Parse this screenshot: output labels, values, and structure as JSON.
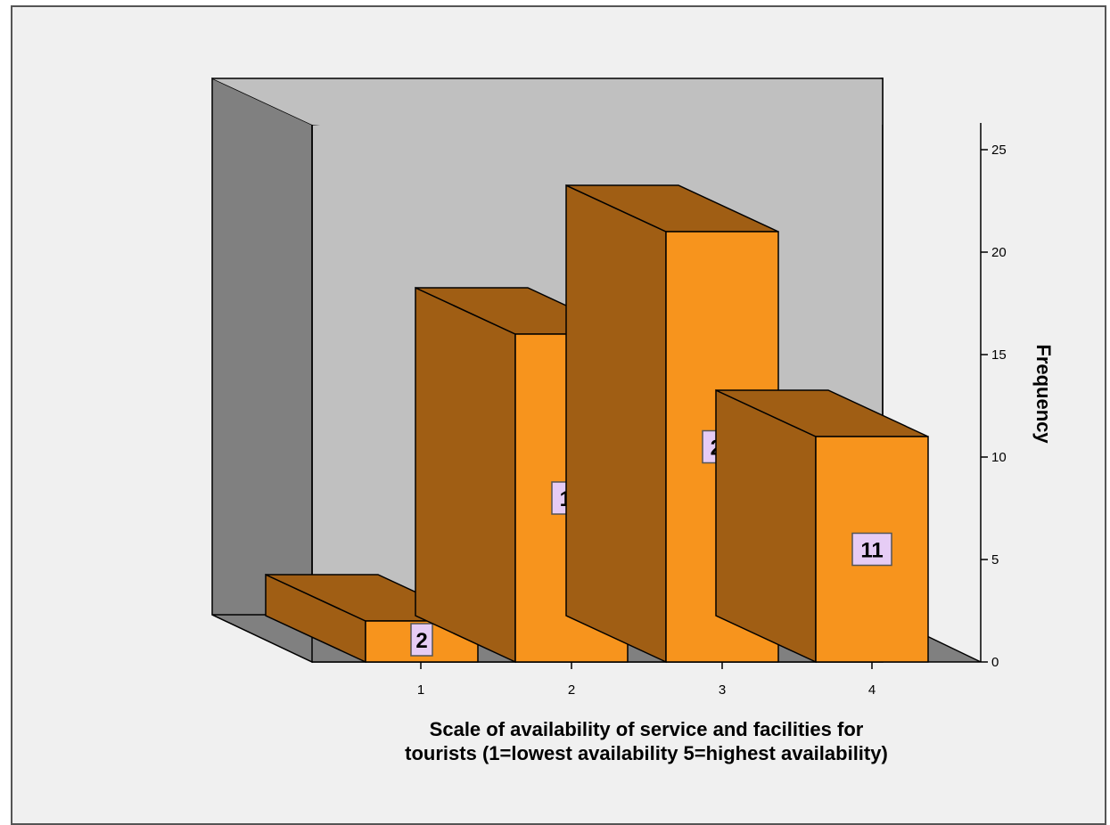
{
  "chart_data": {
    "type": "bar",
    "three_d": true,
    "categories": [
      "1",
      "2",
      "3",
      "4"
    ],
    "values": [
      2,
      16,
      21,
      11
    ],
    "data_labels": [
      "2",
      "16",
      "21",
      "11"
    ],
    "xlabel_lines": [
      "Scale of availability of service and facilities for",
      "tourists (1=lowest availability 5=highest availability)"
    ],
    "ylabel": "Frequency",
    "ylim": [
      0,
      25
    ],
    "yticks": [
      0,
      5,
      10,
      15,
      20,
      25
    ],
    "y_axis_position": "right",
    "grid": false,
    "legend": "none",
    "colors": {
      "bar_front": "#f7941d",
      "bar_side": "#a05e14",
      "bar_top": "#a05e14",
      "back_wall": "#c0c0c0",
      "side_wall": "#808080",
      "floor": "#808080",
      "frame_background": "#f0f0f0",
      "data_label_box": "#e6ccf5"
    }
  }
}
